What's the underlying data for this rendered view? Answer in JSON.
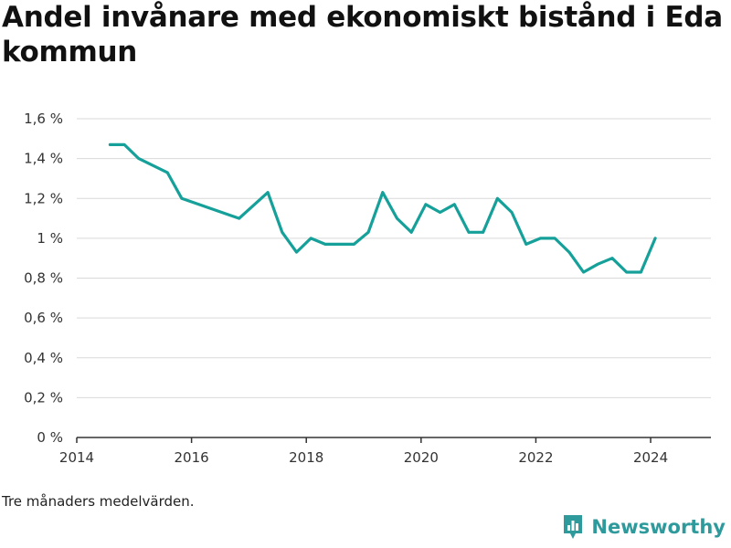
{
  "title": "Andel invånare med ekonomiskt bistånd i Eda kommun",
  "note": "Tre månaders medelvärden.",
  "brand": {
    "name": "Newsworthy",
    "icon": "newsworthy-logo-icon"
  },
  "colors": {
    "line": "#16a09a",
    "grid": "#d9d9d9",
    "axis": "#333333",
    "brand": "#2e9a9c"
  },
  "chart_data": {
    "type": "line",
    "title": "Andel invånare med ekonomiskt bistånd i Eda kommun",
    "xlabel": "",
    "ylabel": "",
    "xlim": [
      2014.0,
      2025.05
    ],
    "ylim": [
      0,
      1.6
    ],
    "grid": true,
    "x_ticks": [
      2014,
      2016,
      2018,
      2020,
      2022,
      2024
    ],
    "x_tick_labels": [
      "2014",
      "2016",
      "2018",
      "2020",
      "2022",
      "2024"
    ],
    "y_ticks": [
      0,
      0.2,
      0.4,
      0.6,
      0.8,
      1.0,
      1.2,
      1.4,
      1.6
    ],
    "y_tick_labels": [
      "0 %",
      "0,2 %",
      "0,4 %",
      "0,6 %",
      "0,8 %",
      "1 %",
      "1,2 %",
      "1,4 %",
      "1,6 %"
    ],
    "series": [
      {
        "x": [
          2014.58,
          2014.83,
          2015.08,
          2015.58,
          2015.83,
          2016.83,
          2017.33,
          2017.58,
          2017.83,
          2018.08,
          2018.33,
          2018.58,
          2018.83,
          2019.08,
          2019.33,
          2019.58,
          2019.83,
          2020.08,
          2020.33,
          2020.58,
          2020.83,
          2021.08,
          2021.33,
          2021.58,
          2021.83,
          2022.08,
          2022.33,
          2022.58,
          2022.83,
          2023.08,
          2023.33,
          2023.58,
          2023.83,
          2024.08
        ],
        "y": [
          1.47,
          1.47,
          1.4,
          1.33,
          1.2,
          1.1,
          1.23,
          1.03,
          0.93,
          1.0,
          0.97,
          0.97,
          0.97,
          1.03,
          1.23,
          1.1,
          1.03,
          1.17,
          1.13,
          1.17,
          1.03,
          1.03,
          1.2,
          1.13,
          0.97,
          1.0,
          1.0,
          0.93,
          0.83,
          0.87,
          0.9,
          0.83,
          0.83,
          1.0
        ]
      }
    ]
  }
}
